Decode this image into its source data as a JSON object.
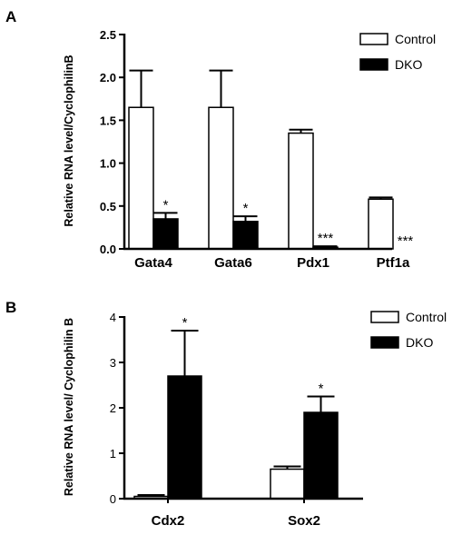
{
  "chart_data": [
    {
      "panel": "A",
      "type": "bar",
      "categories": [
        "Gata4",
        "Gata6",
        "Pdx1",
        "Ptf1a"
      ],
      "ylabel": "Relative RNA level/CyclophilinB",
      "xlabel": "",
      "ylim": [
        0,
        2.5
      ],
      "yticks": [
        "0.0",
        "0.5",
        "1.0",
        "1.5",
        "2.0",
        "2.5"
      ],
      "legend_position": "top-right",
      "series": [
        {
          "name": "Control",
          "fill": "#ffffff",
          "values": [
            1.65,
            1.65,
            1.35,
            0.58
          ],
          "errors": [
            0.43,
            0.43,
            0.04,
            0.02
          ]
        },
        {
          "name": "DKO",
          "fill": "#000000",
          "values": [
            0.35,
            0.32,
            0.02,
            0.0
          ],
          "errors": [
            0.07,
            0.06,
            0.01,
            0.0
          ]
        }
      ],
      "annotations": [
        "*",
        "*",
        "***",
        "***"
      ]
    },
    {
      "panel": "B",
      "type": "bar",
      "categories": [
        "Cdx2",
        "Sox2"
      ],
      "ylabel": "Relative RNA level/ Cyclophilin B",
      "xlabel": "",
      "ylim": [
        0,
        4
      ],
      "yticks": [
        "0",
        "1",
        "2",
        "3",
        "4"
      ],
      "legend_position": "top-right",
      "series": [
        {
          "name": "Control",
          "fill": "#ffffff",
          "values": [
            0.05,
            0.65
          ],
          "errors": [
            0.03,
            0.06
          ]
        },
        {
          "name": "DKO",
          "fill": "#000000",
          "values": [
            2.7,
            1.9
          ],
          "errors": [
            1.0,
            0.35
          ]
        }
      ],
      "annotations": [
        "*",
        "*"
      ]
    }
  ]
}
